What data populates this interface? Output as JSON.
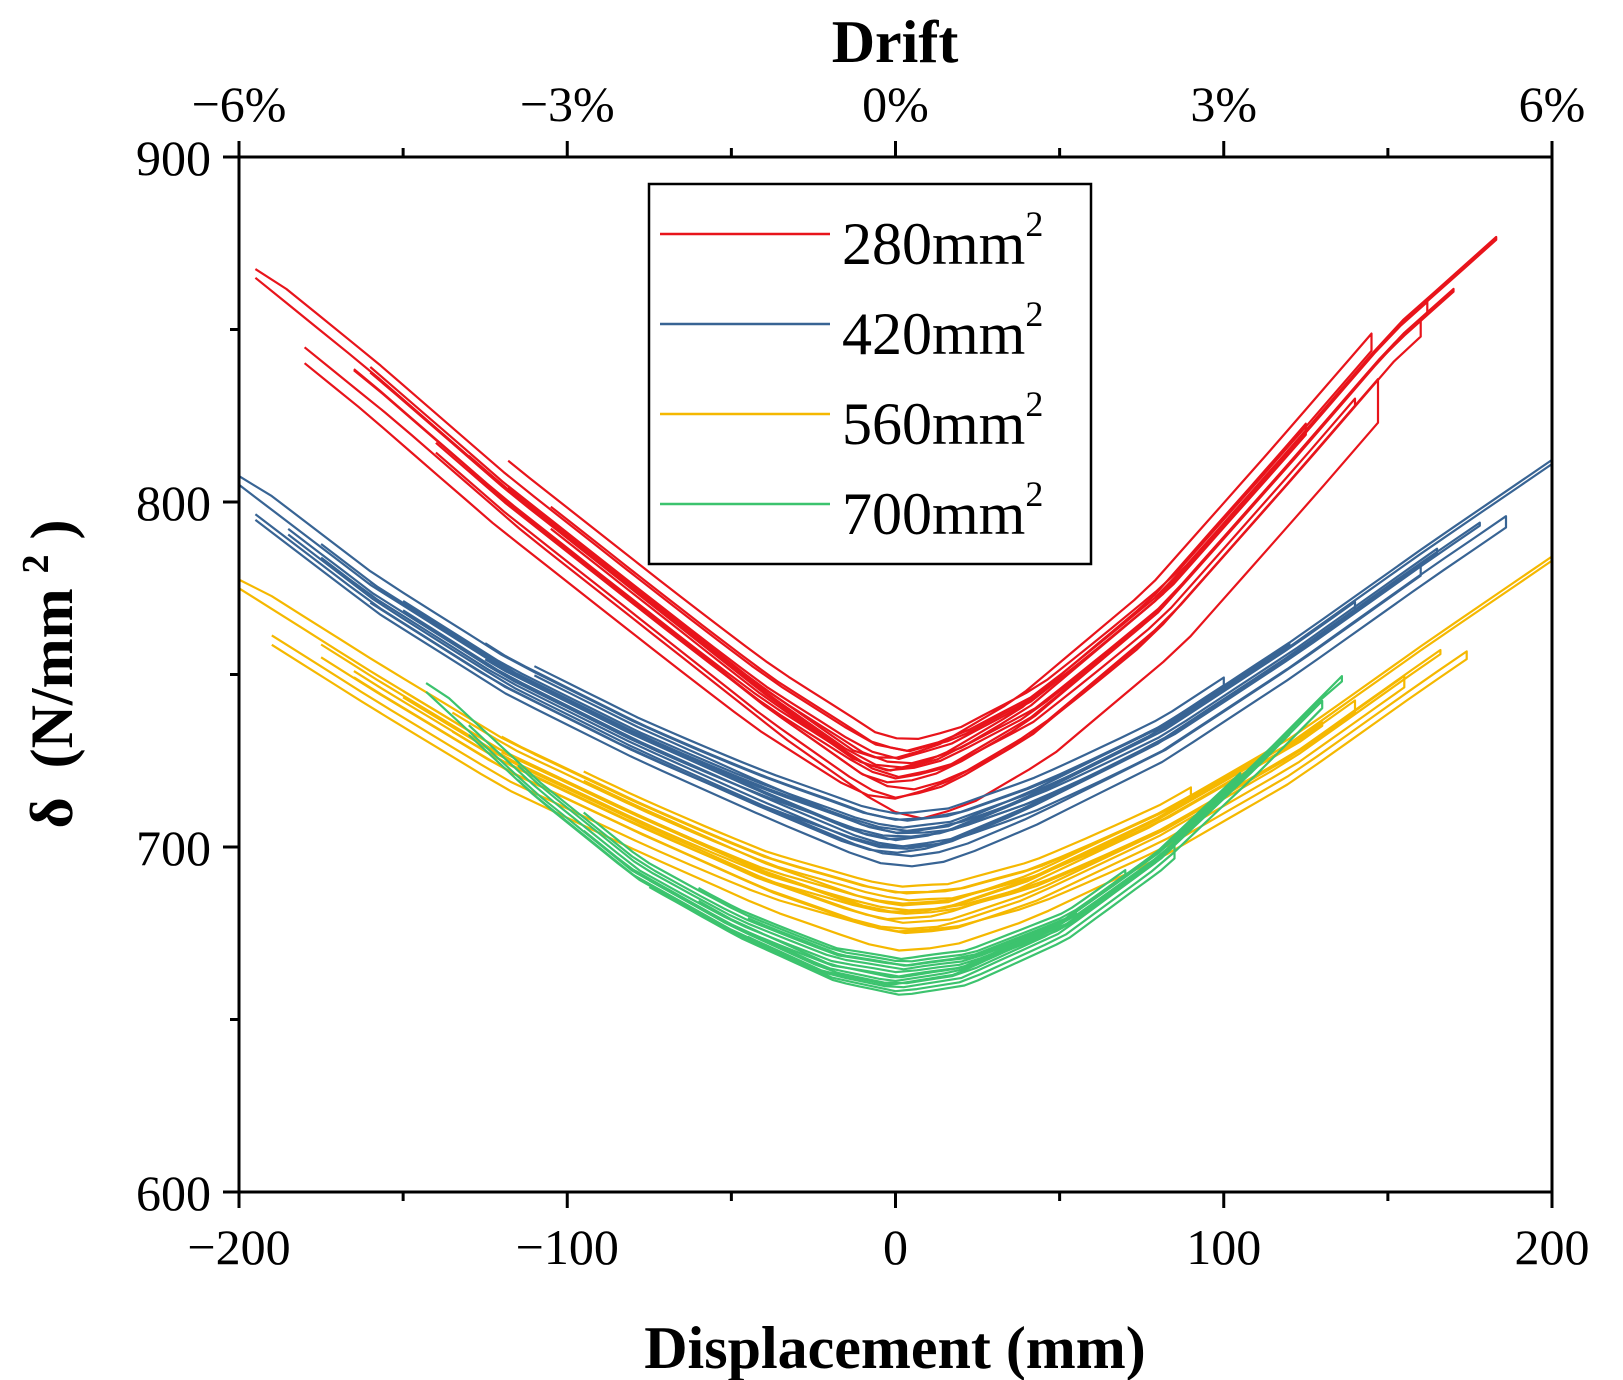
{
  "chart_data": {
    "type": "line",
    "title": "",
    "xlabel": "Displacement (mm)",
    "ylabel": "δ (N/mm²)",
    "ylabel_parts": {
      "symbol": "δ",
      "unit_open": "(N/mm",
      "unit_sup": "2",
      "unit_close": ")"
    },
    "top_xlabel": "Drift",
    "xlim": [
      -200,
      200
    ],
    "ylim": [
      600,
      900
    ],
    "x_ticks": [
      -200,
      -100,
      0,
      100,
      200
    ],
    "x_tick_labels": [
      "−200",
      "−100",
      "0",
      "100",
      "200"
    ],
    "y_ticks": [
      600,
      700,
      800,
      900
    ],
    "y_tick_labels": [
      "600",
      "700",
      "800",
      "900"
    ],
    "top_ticks_drift_pct": [
      -6,
      -3,
      0,
      3,
      6
    ],
    "top_tick_labels": [
      "−6%",
      "−3%",
      "0%",
      "3%",
      "6%"
    ],
    "legend_position": "top-center",
    "series": [
      {
        "name": "280mm²",
        "label_base": "280mm",
        "label_sup": "2",
        "color": "#e8141b",
        "envelope": [
          [
            -195,
            865
          ],
          [
            -160,
            838
          ],
          [
            -120,
            805
          ],
          [
            -80,
            775
          ],
          [
            -40,
            745
          ],
          [
            -10,
            725
          ],
          [
            0,
            722
          ],
          [
            15,
            726
          ],
          [
            40,
            740
          ],
          [
            80,
            772
          ],
          [
            120,
            815
          ],
          [
            150,
            848
          ],
          [
            183,
            876
          ]
        ],
        "center_displacement": 5,
        "cycles": [
          {
            "amp_neg": -180,
            "amp_pos": 147,
            "x_shift": 7,
            "y_shift": -14
          },
          {
            "amp_neg": -165,
            "amp_pos": 160,
            "x_shift": 3,
            "y_shift": -6
          },
          {
            "amp_neg": -130,
            "amp_pos": 170,
            "x_shift": 0,
            "y_shift": -4
          },
          {
            "amp_neg": -105,
            "amp_pos": 125,
            "x_shift": -2,
            "y_shift": 0
          },
          {
            "amp_neg": -195,
            "amp_pos": 183,
            "x_shift": 0,
            "y_shift": 0
          },
          {
            "amp_neg": -160,
            "amp_pos": 162,
            "x_shift": 2,
            "y_shift": -2
          },
          {
            "amp_neg": -118,
            "amp_pos": 145,
            "x_shift": -3,
            "y_shift": 3
          },
          {
            "amp_neg": -140,
            "amp_pos": 140,
            "x_shift": 1,
            "y_shift": -8
          }
        ]
      },
      {
        "name": "420mm²",
        "label_base": "420mm",
        "label_sup": "2",
        "color": "#386494",
        "envelope": [
          [
            -200,
            805
          ],
          [
            -160,
            776
          ],
          [
            -120,
            752
          ],
          [
            -80,
            733
          ],
          [
            -40,
            716
          ],
          [
            -10,
            704
          ],
          [
            0,
            702
          ],
          [
            15,
            704
          ],
          [
            40,
            714
          ],
          [
            80,
            733
          ],
          [
            120,
            758
          ],
          [
            160,
            785
          ],
          [
            200,
            811
          ]
        ],
        "center_displacement": 3,
        "cycles": [
          {
            "amp_neg": -195,
            "amp_pos": 186,
            "x_shift": 2,
            "y_shift": -8
          },
          {
            "amp_neg": -175,
            "amp_pos": 165,
            "x_shift": 0,
            "y_shift": -3
          },
          {
            "amp_neg": -150,
            "amp_pos": 140,
            "x_shift": 1,
            "y_shift": -2
          },
          {
            "amp_neg": -125,
            "amp_pos": 120,
            "x_shift": -1,
            "y_shift": 0
          },
          {
            "amp_neg": -200,
            "amp_pos": 200,
            "x_shift": 0,
            "y_shift": 0
          },
          {
            "amp_neg": -185,
            "amp_pos": 160,
            "x_shift": 2,
            "y_shift": -5
          },
          {
            "amp_neg": -160,
            "amp_pos": 178,
            "x_shift": -2,
            "y_shift": -4
          },
          {
            "amp_neg": -110,
            "amp_pos": 100,
            "x_shift": 1,
            "y_shift": 2
          }
        ]
      },
      {
        "name": "560mm²",
        "label_base": "560mm",
        "label_sup": "2",
        "color": "#f5b800",
        "envelope": [
          [
            -200,
            775
          ],
          [
            -160,
            751
          ],
          [
            -120,
            728
          ],
          [
            -80,
            710
          ],
          [
            -40,
            693
          ],
          [
            -10,
            683
          ],
          [
            0,
            681
          ],
          [
            15,
            682
          ],
          [
            40,
            690
          ],
          [
            80,
            708
          ],
          [
            120,
            730
          ],
          [
            160,
            757
          ],
          [
            200,
            783
          ]
        ],
        "center_displacement": 5,
        "cycles": [
          {
            "amp_neg": -190,
            "amp_pos": 174,
            "x_shift": 1,
            "y_shift": -11
          },
          {
            "amp_neg": -175,
            "amp_pos": 166,
            "x_shift": 0,
            "y_shift": -5
          },
          {
            "amp_neg": -150,
            "amp_pos": 140,
            "x_shift": 2,
            "y_shift": -3
          },
          {
            "amp_neg": -120,
            "amp_pos": 115,
            "x_shift": -1,
            "y_shift": 0
          },
          {
            "amp_neg": -200,
            "amp_pos": 200,
            "x_shift": 0,
            "y_shift": 0
          },
          {
            "amp_neg": -165,
            "amp_pos": 155,
            "x_shift": 2,
            "y_shift": -6
          },
          {
            "amp_neg": -135,
            "amp_pos": 130,
            "x_shift": -2,
            "y_shift": -2
          },
          {
            "amp_neg": -95,
            "amp_pos": 90,
            "x_shift": 1,
            "y_shift": 2
          }
        ]
      },
      {
        "name": "700mm²",
        "label_base": "700mm",
        "label_sup": "2",
        "color": "#3cc36e",
        "envelope": [
          [
            -143,
            745
          ],
          [
            -110,
            716
          ],
          [
            -80,
            693
          ],
          [
            -50,
            677
          ],
          [
            -20,
            664
          ],
          [
            0,
            660
          ],
          [
            20,
            663
          ],
          [
            50,
            676
          ],
          [
            80,
            697
          ],
          [
            110,
            724
          ],
          [
            135,
            748
          ]
        ],
        "center_displacement": 5,
        "cycles": [
          {
            "amp_neg": -143,
            "amp_pos": 136,
            "x_shift": 0,
            "y_shift": 0
          },
          {
            "amp_neg": -130,
            "amp_pos": 130,
            "x_shift": 1,
            "y_shift": -2
          },
          {
            "amp_neg": -115,
            "amp_pos": 120,
            "x_shift": 0,
            "y_shift": -1
          },
          {
            "amp_neg": -95,
            "amp_pos": 105,
            "x_shift": -1,
            "y_shift": 1
          },
          {
            "amp_neg": -75,
            "amp_pos": 85,
            "x_shift": 2,
            "y_shift": -3
          },
          {
            "amp_neg": -60,
            "amp_pos": 70,
            "x_shift": 0,
            "y_shift": 2
          },
          {
            "amp_neg": -45,
            "amp_pos": 55,
            "x_shift": -2,
            "y_shift": 0
          }
        ]
      }
    ]
  }
}
